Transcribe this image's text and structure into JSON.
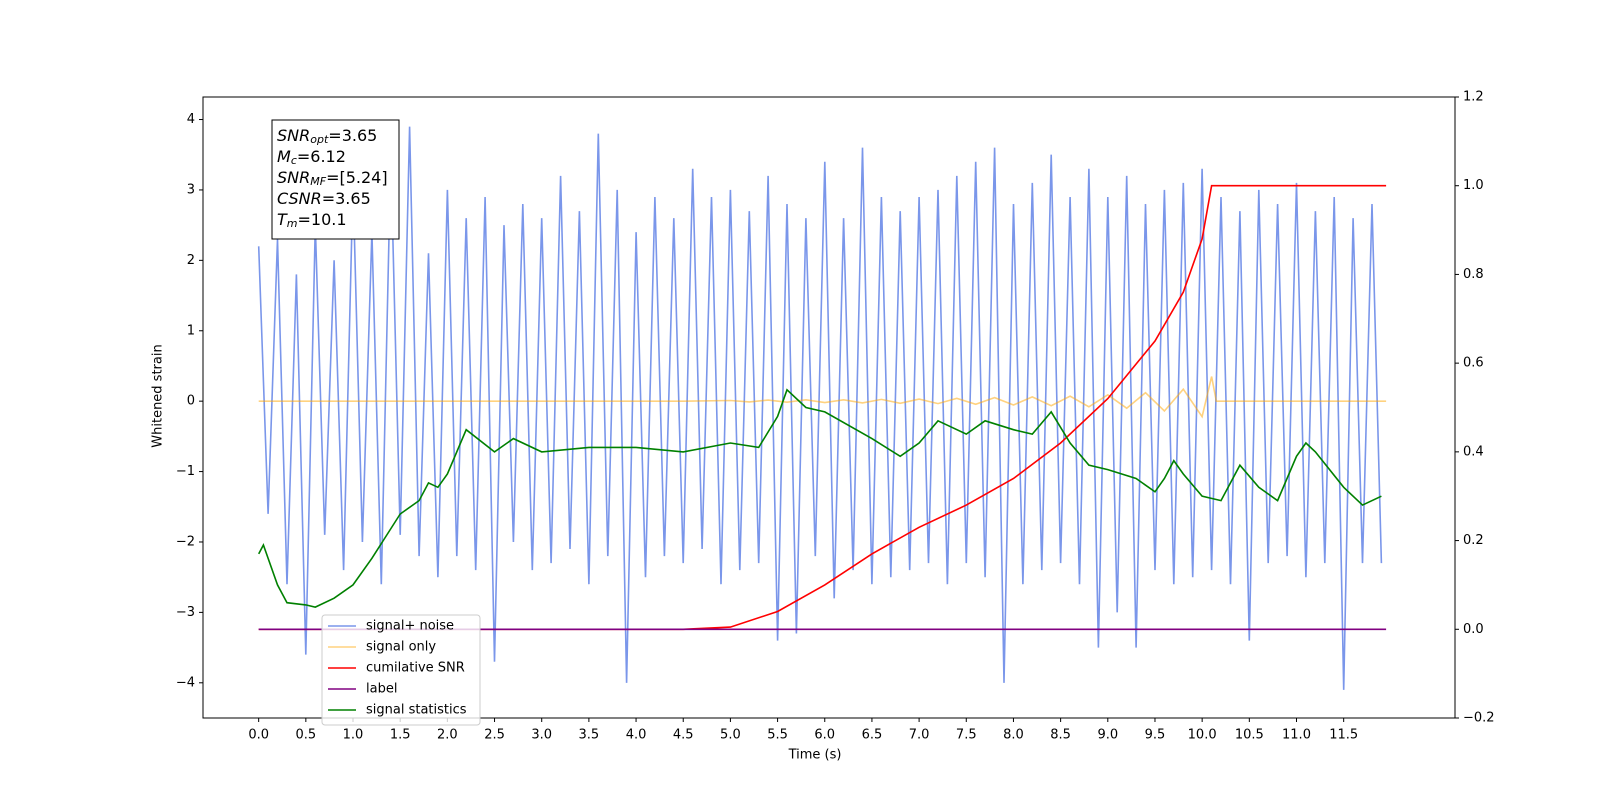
{
  "chart_data": {
    "type": "line",
    "xlabel": "Time (s)",
    "ylabel": "Whitened strain",
    "xlim": [
      -0.59,
      12.68
    ],
    "ylim": [
      -4.5,
      4.32
    ],
    "y2lim": [
      -0.2,
      1.2
    ],
    "xticks": [
      {
        "value": 0,
        "label": "0.0"
      },
      {
        "value": 0.5,
        "label": "0.5"
      },
      {
        "value": 1,
        "label": "1.0"
      },
      {
        "value": 1.5,
        "label": "1.5"
      },
      {
        "value": 2,
        "label": "2.0"
      },
      {
        "value": 2.5,
        "label": "2.5"
      },
      {
        "value": 3,
        "label": "3.0"
      },
      {
        "value": 3.5,
        "label": "3.5"
      },
      {
        "value": 4,
        "label": "4.0"
      },
      {
        "value": 4.5,
        "label": "4.5"
      },
      {
        "value": 5,
        "label": "5.0"
      },
      {
        "value": 5.5,
        "label": "5.5"
      },
      {
        "value": 6,
        "label": "6.0"
      },
      {
        "value": 6.5,
        "label": "6.5"
      },
      {
        "value": 7,
        "label": "7.0"
      },
      {
        "value": 7.5,
        "label": "7.5"
      },
      {
        "value": 8,
        "label": "8.0"
      },
      {
        "value": 8.5,
        "label": "8.5"
      },
      {
        "value": 9,
        "label": "9.0"
      },
      {
        "value": 9.5,
        "label": "9.5"
      },
      {
        "value": 10,
        "label": "10.0"
      },
      {
        "value": 10.5,
        "label": "10.5"
      },
      {
        "value": 11,
        "label": "11.0"
      },
      {
        "value": 11.5,
        "label": "11.5"
      }
    ],
    "yticks": [
      {
        "value": -4,
        "label": "−4"
      },
      {
        "value": -3,
        "label": "−3"
      },
      {
        "value": -2,
        "label": "−2"
      },
      {
        "value": -1,
        "label": "−1"
      },
      0,
      1,
      2,
      3,
      4
    ],
    "y2ticks": [
      {
        "value": -0.2,
        "label": "−0.2"
      },
      {
        "value": 0,
        "label": "0.0"
      },
      0.2,
      0.4,
      0.6,
      0.8,
      {
        "value": 1,
        "label": "1.0"
      },
      1.2
    ],
    "legend": "lower left",
    "annotation": [
      {
        "main": "SNR",
        "sub": "opt",
        "value": "=3.65"
      },
      {
        "main": "M",
        "sub": "c",
        "value": "=6.12"
      },
      {
        "main": "SNR",
        "sub": "MF",
        "value": "=[5.24]"
      },
      {
        "main": "CSNR",
        "sub": null,
        "value": "=3.65"
      },
      {
        "main": "T",
        "sub": "m",
        "value": "=10.1"
      }
    ],
    "series": [
      {
        "name": "signal+ noise",
        "color": "#4169e1",
        "alpha": 0.7,
        "x": [
          0,
          0.1,
          0.2,
          0.3,
          0.4,
          0.5,
          0.6,
          0.7,
          0.8,
          0.9,
          1,
          1.1,
          1.2,
          1.3,
          1.4,
          1.5,
          1.6,
          1.7,
          1.8,
          1.9,
          2,
          2.1,
          2.2,
          2.3,
          2.4,
          2.5,
          2.6,
          2.7,
          2.8,
          2.9,
          3,
          3.1,
          3.2,
          3.3,
          3.4,
          3.5,
          3.6,
          3.7,
          3.8,
          3.9,
          4,
          4.1,
          4.2,
          4.3,
          4.4,
          4.5,
          4.6,
          4.7,
          4.8,
          4.9,
          5,
          5.1,
          5.2,
          5.3,
          5.4,
          5.5,
          5.6,
          5.7,
          5.8,
          5.9,
          6,
          6.1,
          6.2,
          6.3,
          6.4,
          6.5,
          6.6,
          6.7,
          6.8,
          6.9,
          7,
          7.1,
          7.2,
          7.3,
          7.4,
          7.5,
          7.6,
          7.7,
          7.8,
          7.9,
          8,
          8.1,
          8.2,
          8.3,
          8.4,
          8.5,
          8.6,
          8.7,
          8.8,
          8.9,
          9,
          9.1,
          9.2,
          9.3,
          9.4,
          9.5,
          9.6,
          9.7,
          9.8,
          9.9,
          10,
          10.1,
          10.2,
          10.3,
          10.4,
          10.5,
          10.6,
          10.7,
          10.8,
          10.9,
          11,
          11.1,
          11.2,
          11.3,
          11.4,
          11.5,
          11.6,
          11.7,
          11.8,
          11.9
        ],
        "values": [
          2.2,
          -1.6,
          2.3,
          -2.6,
          1.8,
          -3.6,
          2.5,
          -1.9,
          2.0,
          -2.4,
          3.1,
          -2.0,
          2.4,
          -2.6,
          3.5,
          -1.9,
          3.9,
          -2.2,
          2.1,
          -2.5,
          3.0,
          -2.2,
          2.6,
          -2.4,
          2.9,
          -3.7,
          2.5,
          -2.0,
          2.8,
          -2.4,
          2.6,
          -2.3,
          3.2,
          -2.1,
          2.7,
          -2.6,
          3.8,
          -2.2,
          3.0,
          -4.0,
          2.4,
          -2.5,
          2.9,
          -2.2,
          2.6,
          -2.3,
          3.3,
          -2.1,
          2.9,
          -2.6,
          3.0,
          -2.4,
          2.7,
          -2.3,
          3.2,
          -3.4,
          2.8,
          -3.3,
          2.6,
          -2.2,
          3.4,
          -2.8,
          2.6,
          -2.4,
          3.6,
          -2.6,
          2.9,
          -2.5,
          2.7,
          -2.4,
          2.9,
          -2.3,
          3.0,
          -2.6,
          3.2,
          -2.3,
          3.4,
          -2.5,
          3.6,
          -4.0,
          2.8,
          -2.6,
          3.1,
          -2.4,
          3.5,
          -2.3,
          2.9,
          -2.6,
          3.3,
          -3.5,
          2.9,
          -3.0,
          3.2,
          -3.5,
          2.8,
          -2.4,
          3.0,
          -2.6,
          3.1,
          -2.5,
          3.3,
          -2.4,
          2.9,
          -2.6,
          2.7,
          -3.4,
          3.0,
          -2.3,
          2.8,
          -2.2,
          3.1,
          -2.5,
          2.7,
          -2.3,
          2.9,
          -4.1,
          2.6,
          -2.3,
          2.8,
          -2.3
        ]
      },
      {
        "name": "signal only",
        "color": "#ffa500",
        "alpha": 0.5,
        "x": [
          0,
          4.5,
          5.0,
          5.2,
          5.4,
          5.6,
          5.8,
          6.0,
          6.2,
          6.4,
          6.6,
          6.8,
          7.0,
          7.2,
          7.4,
          7.6,
          7.8,
          8.0,
          8.2,
          8.4,
          8.6,
          8.8,
          9.0,
          9.2,
          9.4,
          9.6,
          9.8,
          10.0,
          10.1,
          10.15,
          11.95
        ],
        "values": [
          0,
          0,
          0.01,
          -0.01,
          0.015,
          -0.015,
          0.02,
          -0.02,
          0.02,
          -0.025,
          0.025,
          -0.03,
          0.03,
          -0.035,
          0.04,
          -0.045,
          0.05,
          -0.055,
          0.06,
          -0.065,
          0.07,
          -0.08,
          0.09,
          -0.1,
          0.12,
          -0.14,
          0.17,
          -0.22,
          0.35,
          0,
          0
        ]
      },
      {
        "name": "cumilative SNR",
        "color": "#ff0000",
        "alpha": 1,
        "axis": "y2",
        "x": [
          0,
          4.5,
          5.0,
          5.5,
          6.0,
          6.5,
          7.0,
          7.5,
          8.0,
          8.5,
          9.0,
          9.5,
          9.8,
          10.0,
          10.1,
          11.95
        ],
        "values": [
          0,
          0,
          0.005,
          0.04,
          0.1,
          0.17,
          0.23,
          0.28,
          0.34,
          0.42,
          0.52,
          0.65,
          0.76,
          0.88,
          1.0,
          1.0
        ]
      },
      {
        "name": "label",
        "color": "#800080",
        "alpha": 1,
        "axis": "y2",
        "x": [
          0,
          11.95
        ],
        "values": [
          0,
          0
        ]
      },
      {
        "name": "signal statistics",
        "color": "#008000",
        "alpha": 1,
        "axis": "y2",
        "x": [
          0,
          0.05,
          0.2,
          0.3,
          0.5,
          0.6,
          0.8,
          1.0,
          1.2,
          1.5,
          1.7,
          1.8,
          1.9,
          2.0,
          2.2,
          2.5,
          2.7,
          3.0,
          3.5,
          4.0,
          4.5,
          5.0,
          5.3,
          5.5,
          5.6,
          5.8,
          6.0,
          6.5,
          6.8,
          7.0,
          7.2,
          7.5,
          7.7,
          8.0,
          8.2,
          8.4,
          8.6,
          8.8,
          9.0,
          9.3,
          9.5,
          9.6,
          9.7,
          9.8,
          10.0,
          10.2,
          10.4,
          10.6,
          10.8,
          11.0,
          11.1,
          11.2,
          11.5,
          11.7,
          11.9
        ],
        "values": [
          0.17,
          0.19,
          0.1,
          0.06,
          0.055,
          0.05,
          0.07,
          0.1,
          0.16,
          0.26,
          0.29,
          0.33,
          0.32,
          0.35,
          0.45,
          0.4,
          0.43,
          0.4,
          0.41,
          0.41,
          0.4,
          0.42,
          0.41,
          0.48,
          0.54,
          0.5,
          0.49,
          0.43,
          0.39,
          0.42,
          0.47,
          0.44,
          0.47,
          0.45,
          0.44,
          0.49,
          0.42,
          0.37,
          0.36,
          0.34,
          0.31,
          0.34,
          0.38,
          0.35,
          0.3,
          0.29,
          0.37,
          0.32,
          0.29,
          0.39,
          0.42,
          0.4,
          0.32,
          0.28,
          0.3
        ]
      }
    ]
  }
}
